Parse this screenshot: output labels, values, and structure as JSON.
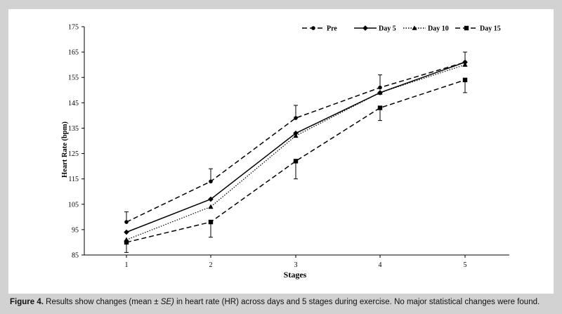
{
  "caption": {
    "label": "Figure 4.",
    "text_part1": "Results show changes (mean ± ",
    "text_italic": "SE)",
    "text_part2": " in heart rate (HR) across days and 5 stages during exercise. No major statistical changes were found."
  },
  "chart_data": {
    "type": "line",
    "xlabel": "Stages",
    "ylabel": "Heart Rate (bpm)",
    "x": [
      1,
      2,
      3,
      4,
      5
    ],
    "x_tick_labels": [
      "1",
      "2",
      "3",
      "4",
      "5"
    ],
    "ylim": [
      85,
      175
    ],
    "y_ticks": [
      85,
      95,
      105,
      115,
      125,
      135,
      145,
      155,
      165,
      175
    ],
    "grid": false,
    "legend_position": "top-right",
    "series": [
      {
        "name": "Pre",
        "values": [
          98,
          114,
          139,
          151,
          161
        ],
        "marker": "circle",
        "line_style": "dashed",
        "color": "#000000"
      },
      {
        "name": "Day 5",
        "values": [
          94,
          107,
          133,
          149,
          161
        ],
        "marker": "diamond",
        "line_style": "solid",
        "color": "#000000"
      },
      {
        "name": "Day 10",
        "values": [
          91,
          104,
          132,
          149,
          160
        ],
        "marker": "triangle",
        "line_style": "dotted",
        "color": "#000000"
      },
      {
        "name": "Day 15",
        "values": [
          90,
          98,
          122,
          143,
          154
        ],
        "marker": "square",
        "line_style": "dashed",
        "color": "#000000"
      }
    ],
    "error_bars": [
      {
        "series": "Pre",
        "x": 1,
        "upper": 102
      },
      {
        "series": "Pre",
        "x": 2,
        "upper": 119
      },
      {
        "series": "Pre",
        "x": 3,
        "upper": 144
      },
      {
        "series": "Pre",
        "x": 4,
        "upper": 156
      },
      {
        "series": "Pre",
        "x": 5,
        "upper": 165
      },
      {
        "series": "Day 15",
        "x": 1,
        "lower": 86
      },
      {
        "series": "Day 15",
        "x": 2,
        "lower": 92
      },
      {
        "series": "Day 15",
        "x": 3,
        "lower": 115
      },
      {
        "series": "Day 15",
        "x": 4,
        "lower": 138
      },
      {
        "series": "Day 15",
        "x": 5,
        "lower": 149
      }
    ]
  }
}
